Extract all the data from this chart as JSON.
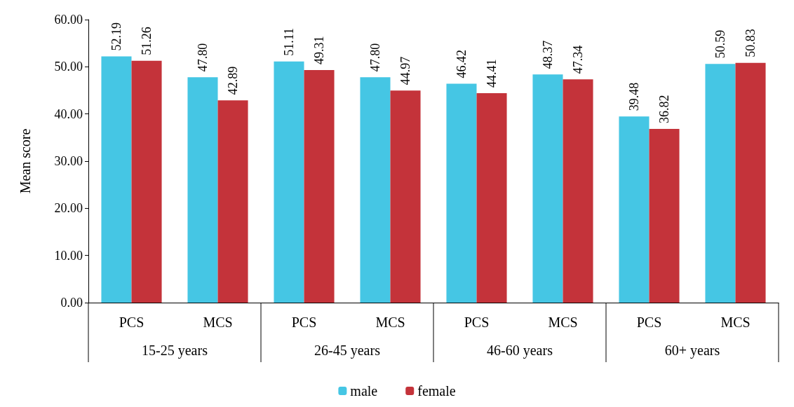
{
  "chart_data": {
    "type": "bar",
    "ylabel": "Mean score",
    "categories": [
      "PCS",
      "MCS",
      "PCS",
      "MCS",
      "PCS",
      "MCS",
      "PCS",
      "MCS"
    ],
    "annotations": [
      "15-25 years",
      "26-45 years",
      "46-60 years",
      "60+ years"
    ],
    "series": [
      {
        "name": "male",
        "color": "#45c6e4",
        "values": [
          52.19,
          47.8,
          51.11,
          47.8,
          46.42,
          48.37,
          39.48,
          50.59
        ],
        "value_labels": [
          "52.19",
          "47.80",
          "51.11",
          "47.80",
          "46.42",
          "48.37",
          "39.48",
          "50.59"
        ]
      },
      {
        "name": "female",
        "color": "#c4333a",
        "values": [
          51.26,
          42.89,
          49.31,
          44.97,
          44.41,
          47.34,
          36.82,
          50.83
        ],
        "value_labels": [
          "51.26",
          "42.89",
          "49.31",
          "44.97",
          "44.41",
          "47.34",
          "36.82",
          "50.83"
        ]
      }
    ],
    "ylim": [
      0,
      60
    ],
    "yticks": [
      {
        "value": 0,
        "label": "0.00"
      },
      {
        "value": 10,
        "label": "10.00"
      },
      {
        "value": 20,
        "label": "20.00"
      },
      {
        "value": 30,
        "label": "30.00"
      },
      {
        "value": 40,
        "label": "40.00"
      },
      {
        "value": 50,
        "label": "50.00"
      },
      {
        "value": 60,
        "label": "60.00"
      }
    ],
    "grid": false,
    "legend": "bottom"
  }
}
